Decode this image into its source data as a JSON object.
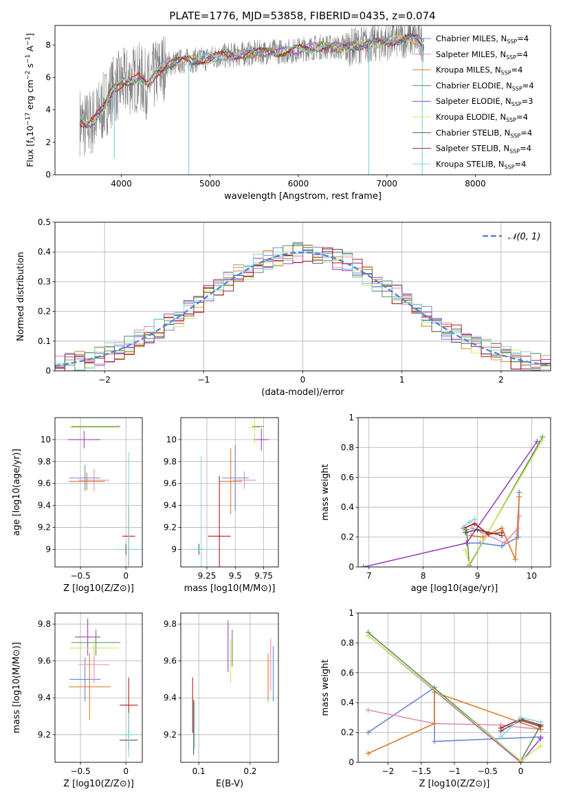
{
  "figure": {
    "title": "PLATE=1776, MJD=53858, FIBERID=0435, z=0.074"
  },
  "colors": {
    "chabrier_miles": "#6687d6",
    "salpeter_miles": "#e68ab2",
    "kroupa_miles": "#dd7a28",
    "chabrier_elodie": "#5a8a5a",
    "salpeter_elodie": "#9b3fbf",
    "kroupa_elodie": "#cce65c",
    "chabrier_stelib": "#555555",
    "salpeter_stelib": "#b31a1a",
    "kroupa_stelib": "#7fd6de",
    "data_grey": "#808080",
    "gaussian": "#4f86d6"
  },
  "legend": [
    {
      "label": "Chabrier MILES, N",
      "sub": "SSP",
      "suffix": "=4",
      "color": "#6687d6"
    },
    {
      "label": "Salpeter MILES, N",
      "sub": "SSP",
      "suffix": "=4",
      "color": "#e68ab2"
    },
    {
      "label": "Kroupa MILES, N",
      "sub": "SSP",
      "suffix": "=4",
      "color": "#dd7a28"
    },
    {
      "label": "Chabrier ELODIE, N",
      "sub": "SSP",
      "suffix": "=4",
      "color": "#5a8a5a"
    },
    {
      "label": "Salpeter ELODIE, N",
      "sub": "SSP",
      "suffix": "=3",
      "color": "#9b3fbf"
    },
    {
      "label": "Kroupa ELODIE, N",
      "sub": "SSP",
      "suffix": "=4",
      "color": "#cce65c"
    },
    {
      "label": "Chabrier STELIB, N",
      "sub": "SSP",
      "suffix": "=4",
      "color": "#555555"
    },
    {
      "label": "Salpeter STELIB, N",
      "sub": "SSP",
      "suffix": "=4",
      "color": "#b31a1a"
    },
    {
      "label": "Kroupa STELIB, N",
      "sub": "SSP",
      "suffix": "=4",
      "color": "#7fd6de"
    }
  ],
  "chart_data": [
    {
      "id": "spectrum",
      "type": "line",
      "xlabel": "wavelength [Angstrom, rest frame]",
      "ylabel": "Flux [f_λ 10^-17 erg cm^-2 s^-1 A^-1]",
      "xlim": [
        3250,
        8850
      ],
      "ylim": [
        0,
        9.2
      ],
      "xticks": [
        4000,
        5000,
        6000,
        7000,
        8000
      ],
      "yticks": [
        0,
        2,
        4,
        6,
        8
      ],
      "continuum": {
        "x": [
          3530,
          3600,
          3700,
          3800,
          3900,
          4000,
          4100,
          4200,
          4300,
          4400,
          4500,
          4700,
          4900,
          5100,
          5300,
          5500,
          5700,
          5900,
          6100,
          6300,
          6500,
          6700,
          6900,
          7100,
          7300,
          7420
        ],
        "y": [
          3.3,
          3.0,
          3.4,
          4.2,
          5.2,
          5.6,
          5.8,
          6.0,
          5.5,
          6.3,
          6.8,
          7.0,
          7.1,
          7.3,
          7.4,
          7.5,
          7.6,
          7.6,
          7.8,
          7.9,
          7.8,
          8.0,
          8.1,
          8.3,
          8.4,
          8.1
        ]
      },
      "dips": [
        {
          "x": 3920,
          "y": 1.0
        },
        {
          "x": 4762,
          "y": 0.0
        },
        {
          "x": 6795,
          "y": 0.0
        },
        {
          "x": 7400,
          "y": 0.0
        }
      ]
    },
    {
      "id": "residuals",
      "type": "line",
      "xlabel": "(data-model)/error",
      "ylabel": "Normed distribution",
      "xlim": [
        -2.5,
        2.5
      ],
      "ylim": [
        0,
        0.5
      ],
      "xticks": [
        -2,
        -1,
        0,
        1,
        2
      ],
      "yticks": [
        0.0,
        0.1,
        0.2,
        0.3,
        0.4,
        0.5
      ],
      "legend": "𝒩(0, 1)",
      "bin_width": 0.1,
      "grid": true
    },
    {
      "id": "age_vs_Z",
      "type": "scatter",
      "xlabel": "Z [log10(Z/Z⊙)]",
      "ylabel": "age [log10(age/yr)]",
      "xlim": [
        -0.78,
        0.18
      ],
      "ylim": [
        8.84,
        10.2
      ],
      "xticks": [
        -0.5,
        0.0
      ],
      "yticks": [
        9.0,
        9.2,
        9.4,
        9.6,
        9.8,
        10.0
      ],
      "points": [
        {
          "series": "Chabrier MILES",
          "x": -0.45,
          "y": 9.65,
          "xerr": 0.17,
          "yerr": 0.12
        },
        {
          "series": "Salpeter MILES",
          "x": -0.35,
          "y": 9.63,
          "xerr": 0.17,
          "yerr": 0.1
        },
        {
          "series": "Kroupa MILES",
          "x": -0.43,
          "y": 9.62,
          "xerr": 0.2,
          "yerr": 0.08
        },
        {
          "series": "Chabrier ELODIE",
          "x": -0.33,
          "y": 10.12,
          "xerr": 0.27,
          "yerr": 0.0
        },
        {
          "series": "Salpeter ELODIE",
          "x": -0.46,
          "y": 10.0,
          "xerr": 0.18,
          "yerr": 0.08
        },
        {
          "series": "Kroupa ELODIE",
          "x": -0.35,
          "y": 10.11,
          "xerr": 0.27,
          "yerr": 0.0
        },
        {
          "series": "Chabrier STELIB",
          "x": 0.0,
          "y": 9.0,
          "xerr": 0.05,
          "yerr": 0.05
        },
        {
          "series": "Salpeter STELIB",
          "x": 0.03,
          "y": 9.12,
          "xerr": 0.07,
          "yerr": 0.27
        },
        {
          "series": "Kroupa STELIB",
          "x": 0.03,
          "y": 9.0,
          "xerr": 0.12,
          "yerr": 0.88
        }
      ]
    },
    {
      "id": "age_vs_mass",
      "type": "scatter",
      "xlabel": "mass [log10(M/M⊙)]",
      "ylabel": "",
      "xlim": [
        9.02,
        9.88
      ],
      "ylim": [
        8.84,
        10.2
      ],
      "xticks": [
        9.25,
        9.5,
        9.75
      ],
      "yticks": [
        9.0,
        9.2,
        9.4,
        9.6,
        9.8,
        10.0
      ],
      "points": [
        {
          "series": "Chabrier MILES",
          "x": 9.5,
          "y": 9.65,
          "xerr": 0.12,
          "yerr": 0.3
        },
        {
          "series": "Salpeter MILES",
          "x": 9.58,
          "y": 9.63,
          "xerr": 0.1,
          "yerr": 0.08
        },
        {
          "series": "Kroupa MILES",
          "x": 9.46,
          "y": 9.62,
          "xerr": 0.1,
          "yerr": 0.3
        },
        {
          "series": "Chabrier ELODIE",
          "x": 9.7,
          "y": 10.12,
          "xerr": 0.05,
          "yerr": 0.0
        },
        {
          "series": "Salpeter ELODIE",
          "x": 9.73,
          "y": 10.0,
          "xerr": 0.07,
          "yerr": 0.1
        },
        {
          "series": "Kroupa ELODIE",
          "x": 9.67,
          "y": 10.11,
          "xerr": 0.05,
          "yerr": 0.15
        },
        {
          "series": "Chabrier STELIB",
          "x": 9.18,
          "y": 9.0,
          "xerr": 0.05,
          "yerr": 0.05
        },
        {
          "series": "Salpeter STELIB",
          "x": 9.36,
          "y": 9.12,
          "xerr": 0.1,
          "yerr": 0.55
        },
        {
          "series": "Kroupa STELIB",
          "x": 9.2,
          "y": 9.0,
          "xerr": 0.12,
          "yerr": 0.85
        }
      ]
    },
    {
      "id": "weight_vs_age",
      "type": "line",
      "xlabel": "age [log10(age/yr)]",
      "ylabel": "mass weight",
      "xlim": [
        6.8,
        10.35
      ],
      "ylim": [
        0.0,
        1.0
      ],
      "xticks": [
        7,
        8,
        9,
        10
      ],
      "yticks": [
        0.0,
        0.2,
        0.4,
        0.6,
        0.8,
        1.0
      ],
      "series": [
        {
          "name": "Chabrier MILES",
          "x": [
            8.8,
            9.05,
            9.45,
            9.75,
            9.77
          ],
          "y": [
            0.16,
            0.16,
            0.14,
            0.2,
            0.5
          ]
        },
        {
          "name": "Salpeter MILES",
          "x": [
            8.9,
            9.1,
            9.5,
            9.75,
            9.77
          ],
          "y": [
            0.26,
            0.23,
            0.16,
            0.26,
            0.34
          ]
        },
        {
          "name": "Kroupa MILES",
          "x": [
            8.88,
            9.1,
            9.45,
            9.7,
            9.77
          ],
          "y": [
            0.21,
            0.2,
            0.26,
            0.05,
            0.47
          ]
        },
        {
          "name": "Chabrier ELODIE",
          "x": [
            8.8,
            8.85,
            10.2
          ],
          "y": [
            0.25,
            0.01,
            0.87
          ]
        },
        {
          "name": "Salpeter ELODIE",
          "x": [
            6.9,
            8.8,
            10.1
          ],
          "y": [
            0.0,
            0.16,
            0.84
          ]
        },
        {
          "name": "Kroupa ELODIE",
          "x": [
            8.78,
            8.85,
            10.2
          ],
          "y": [
            0.11,
            0.02,
            0.85
          ]
        },
        {
          "name": "Chabrier STELIB",
          "x": [
            8.78,
            9.0,
            9.45
          ],
          "y": [
            0.23,
            0.25,
            0.21
          ]
        },
        {
          "name": "Salpeter STELIB",
          "x": [
            8.75,
            8.95,
            9.2,
            9.45
          ],
          "y": [
            0.26,
            0.29,
            0.22,
            0.23
          ]
        },
        {
          "name": "Kroupa STELIB",
          "x": [
            8.75,
            8.85,
            8.95
          ],
          "y": [
            0.27,
            0.3,
            0.32
          ]
        }
      ]
    },
    {
      "id": "mass_vs_Z",
      "type": "scatter",
      "xlabel": "Z [log10(Z/Z⊙)]",
      "ylabel": "mass [log10(M/M⊙)]",
      "xlim": [
        -0.78,
        0.18
      ],
      "ylim": [
        9.05,
        9.86
      ],
      "xticks": [
        -0.5,
        0.0
      ],
      "yticks": [
        9.2,
        9.4,
        9.6,
        9.8
      ],
      "points": [
        {
          "series": "Chabrier MILES",
          "x": -0.45,
          "y": 9.5,
          "xerr": 0.17,
          "yerr": 0.12
        },
        {
          "series": "Salpeter MILES",
          "x": -0.35,
          "y": 9.58,
          "xerr": 0.17,
          "yerr": 0.1
        },
        {
          "series": "Kroupa MILES",
          "x": -0.4,
          "y": 9.46,
          "xerr": 0.23,
          "yerr": 0.18
        },
        {
          "series": "Chabrier ELODIE",
          "x": -0.33,
          "y": 9.7,
          "xerr": 0.27,
          "yerr": 0.07
        },
        {
          "series": "Salpeter ELODIE",
          "x": -0.42,
          "y": 9.73,
          "xerr": 0.14,
          "yerr": 0.1
        },
        {
          "series": "Kroupa ELODIE",
          "x": -0.35,
          "y": 9.67,
          "xerr": 0.27,
          "yerr": 0.05
        },
        {
          "series": "Chabrier STELIB",
          "x": 0.03,
          "y": 9.17,
          "xerr": 0.1,
          "yerr": 0.05
        },
        {
          "series": "Salpeter STELIB",
          "x": 0.03,
          "y": 9.36,
          "xerr": 0.1,
          "yerr": 0.15
        },
        {
          "series": "Kroupa STELIB",
          "x": 0.03,
          "y": 9.2,
          "xerr": 0.1,
          "yerr": 0.12
        }
      ]
    },
    {
      "id": "mass_vs_ebv",
      "type": "scatter",
      "xlabel": "E(B-V)",
      "ylabel": "",
      "xlim": [
        0.065,
        0.255
      ],
      "ylim": [
        9.05,
        9.86
      ],
      "xticks": [
        0.1,
        0.2
      ],
      "yticks": [
        9.2,
        9.4,
        9.6,
        9.8
      ],
      "points": [
        {
          "series": "Chabrier MILES",
          "x": 0.245,
          "y": 9.53,
          "xerr": 0.0,
          "yerr": 0.15
        },
        {
          "series": "Salpeter MILES",
          "x": 0.24,
          "y": 9.58,
          "xerr": 0.0,
          "yerr": 0.14
        },
        {
          "series": "Kroupa MILES",
          "x": 0.235,
          "y": 9.51,
          "xerr": 0.0,
          "yerr": 0.13
        },
        {
          "series": "Chabrier ELODIE",
          "x": 0.165,
          "y": 9.67,
          "xerr": 0.0,
          "yerr": 0.1
        },
        {
          "series": "Salpeter ELODIE",
          "x": 0.157,
          "y": 9.68,
          "xerr": 0.0,
          "yerr": 0.14
        },
        {
          "series": "Kroupa ELODIE",
          "x": 0.162,
          "y": 9.6,
          "xerr": 0.0,
          "yerr": 0.12
        },
        {
          "series": "Chabrier STELIB",
          "x": 0.09,
          "y": 9.24,
          "xerr": 0.0,
          "yerr": 0.15
        },
        {
          "series": "Salpeter STELIB",
          "x": 0.088,
          "y": 9.36,
          "xerr": 0.0,
          "yerr": 0.15
        },
        {
          "series": "Kroupa STELIB",
          "x": 0.092,
          "y": 9.25,
          "xerr": 0.0,
          "yerr": 0.13
        }
      ]
    },
    {
      "id": "weight_vs_Z",
      "type": "line",
      "xlabel": "Z [log10(Z/Z⊙)]",
      "ylabel": "mass weight",
      "xlim": [
        -2.45,
        0.45
      ],
      "ylim": [
        0.0,
        1.0
      ],
      "xticks": [
        -2.0,
        -1.5,
        -1.0,
        -0.5,
        0.0
      ],
      "yticks": [
        0.0,
        0.2,
        0.4,
        0.6,
        0.8,
        1.0
      ],
      "series": [
        {
          "name": "Chabrier MILES",
          "x": [
            -2.3,
            -1.3,
            -1.3,
            0.3
          ],
          "y": [
            0.2,
            0.5,
            0.14,
            0.17
          ]
        },
        {
          "name": "Salpeter MILES",
          "x": [
            -2.3,
            -1.3,
            -0.3,
            0.3
          ],
          "y": [
            0.35,
            0.26,
            0.25,
            0.22
          ]
        },
        {
          "name": "Kroupa MILES",
          "x": [
            -2.3,
            -1.3,
            -1.3,
            0.3
          ],
          "y": [
            0.06,
            0.26,
            0.47,
            0.22
          ]
        },
        {
          "name": "Chabrier ELODIE",
          "x": [
            -2.3,
            0.0,
            0.3
          ],
          "y": [
            0.87,
            0.01,
            0.25
          ]
        },
        {
          "name": "Salpeter ELODIE",
          "x": [
            -2.3,
            0.0,
            0.3
          ],
          "y": [
            0.85,
            0.0,
            0.16
          ]
        },
        {
          "name": "Kroupa ELODIE",
          "x": [
            -2.3,
            0.0,
            0.3
          ],
          "y": [
            0.85,
            0.01,
            0.11
          ]
        },
        {
          "name": "Chabrier STELIB",
          "x": [
            -0.3,
            0.0,
            0.3
          ],
          "y": [
            0.21,
            0.28,
            0.24
          ]
        },
        {
          "name": "Salpeter STELIB",
          "x": [
            -0.3,
            0.0,
            0.3
          ],
          "y": [
            0.23,
            0.29,
            0.25
          ]
        },
        {
          "name": "Kroupa STELIB",
          "x": [
            -0.3,
            0.0,
            0.3
          ],
          "y": [
            0.17,
            0.3,
            0.27
          ]
        }
      ]
    }
  ]
}
